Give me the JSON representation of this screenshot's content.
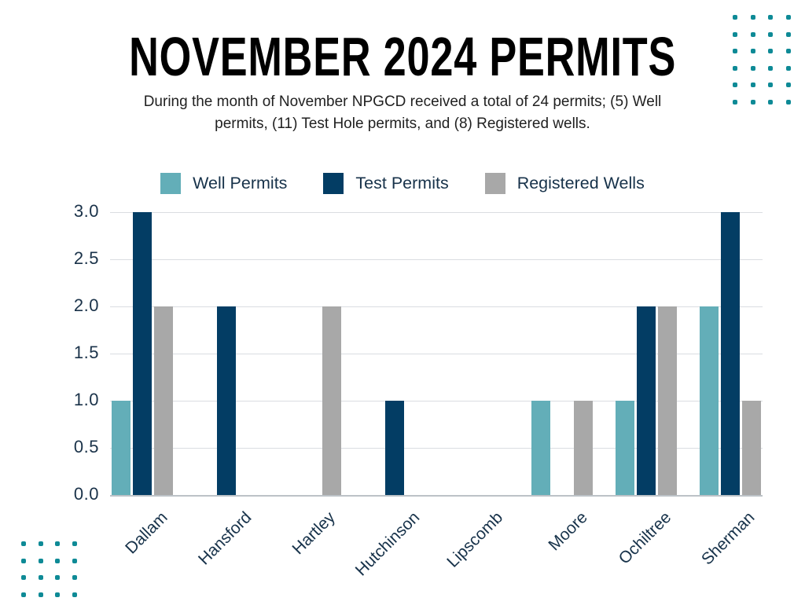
{
  "page": {
    "title": "NOVEMBER 2024 PERMITS",
    "subtitle": "During the month of November NPGCD received a total of 24 permits; (5) Well permits, (11) Test Hole permits, and (8) Registered wells."
  },
  "colors": {
    "well_permits": "#63aeb8",
    "test_permits": "#033d64",
    "registered_wells": "#a8a8a8",
    "axis_text": "#17324a",
    "grid": "#dadde1",
    "decorative_dots": "#0e8a96"
  },
  "chart_data": {
    "type": "bar",
    "title": "NOVEMBER 2024 PERMITS",
    "categories": [
      "Dallam",
      "Hansford",
      "Hartley",
      "Hutchinson",
      "Lipscomb",
      "Moore",
      "Ochiltree",
      "Sherman"
    ],
    "series": [
      {
        "name": "Well Permits",
        "color": "#63aeb8",
        "values": [
          1,
          0,
          0,
          0,
          0,
          1,
          1,
          2
        ]
      },
      {
        "name": "Test Permits",
        "color": "#033d64",
        "values": [
          3,
          2,
          0,
          1,
          0,
          0,
          2,
          3
        ]
      },
      {
        "name": "Registered Wells",
        "color": "#a8a8a8",
        "values": [
          2,
          0,
          2,
          0,
          0,
          1,
          2,
          1
        ]
      }
    ],
    "xlabel": "",
    "ylabel": "",
    "ylim": [
      0,
      3
    ],
    "ytick_step": 0.5,
    "yticks_top_to_bottom": [
      "3.0",
      "2.5",
      "2.0",
      "1.5",
      "1.0",
      "0.5",
      "0.0"
    ],
    "grid": true,
    "legend_position": "top",
    "totals": {
      "well_permits": 5,
      "test_hole_permits": 11,
      "registered_wells": 8,
      "all": 24
    }
  }
}
